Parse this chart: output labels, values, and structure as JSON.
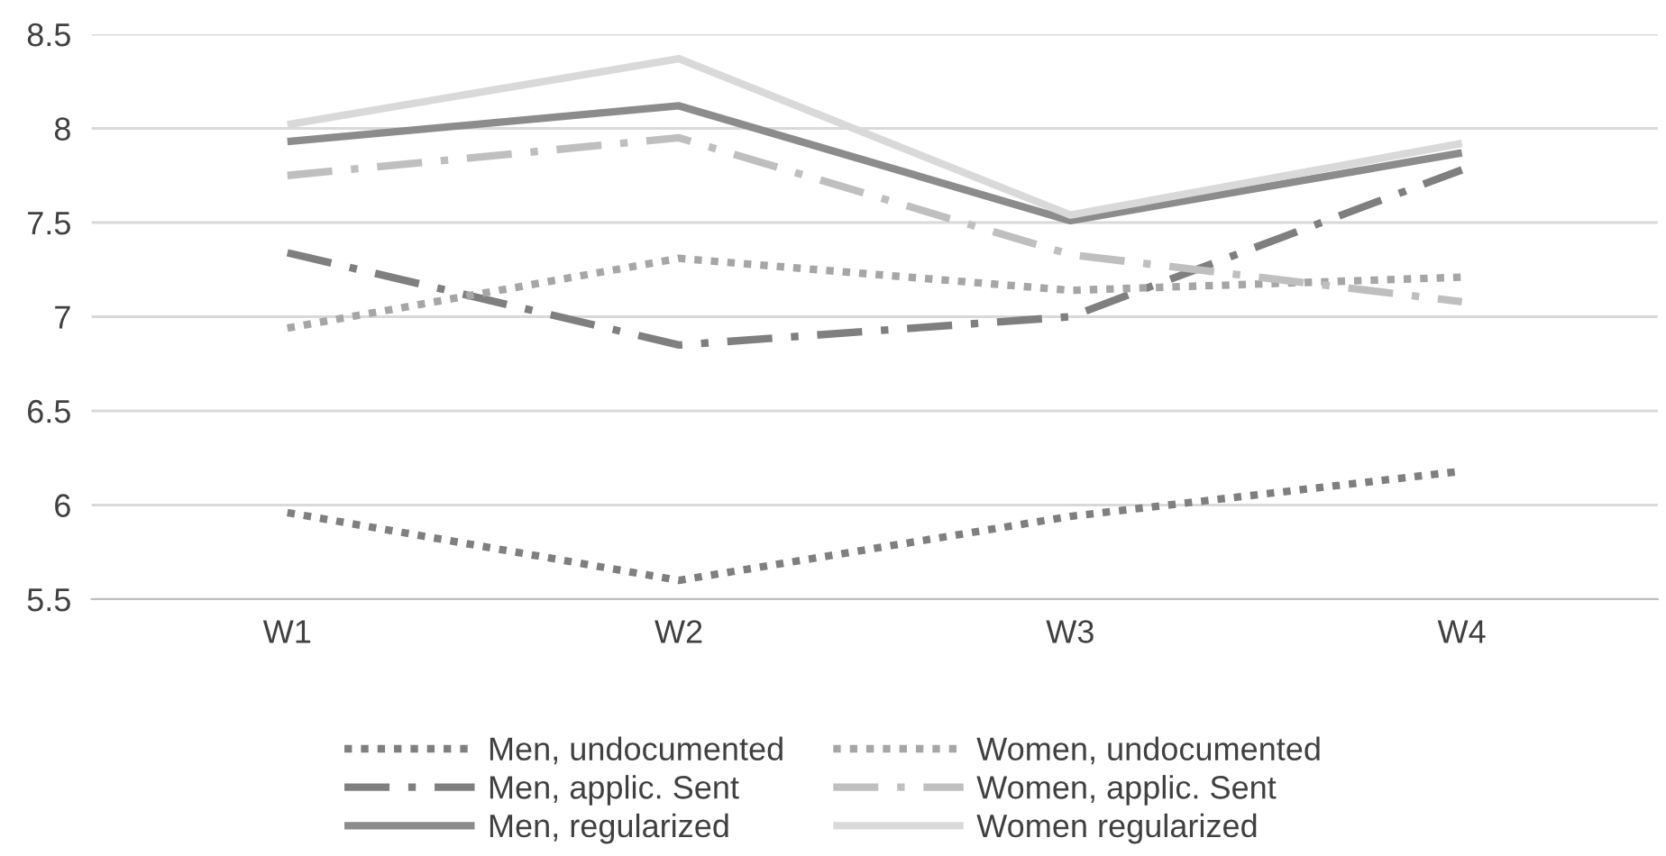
{
  "chart_data": {
    "type": "line",
    "categories": [
      "W1",
      "W2",
      "W3",
      "W4"
    ],
    "ylim": [
      5.5,
      8.5
    ],
    "yticks": [
      5.5,
      6,
      6.5,
      7,
      7.5,
      8,
      8.5
    ],
    "grid": "y",
    "legend": "bottom",
    "series": [
      {
        "name": "Men, undocumented",
        "color": "#7f7f7f",
        "line_style": "dotted",
        "values": [
          5.96,
          5.6,
          5.94,
          6.18
        ]
      },
      {
        "name": "Men, applic. Sent",
        "color": "#7f7f7f",
        "line_style": "dashed",
        "values": [
          7.34,
          6.85,
          7.0,
          7.78
        ]
      },
      {
        "name": "Men, regularized",
        "color": "#8c8c8c",
        "line_style": "solid",
        "values": [
          7.93,
          8.12,
          7.51,
          7.87
        ]
      },
      {
        "name": "Women, undocumented",
        "color": "#a6a6a6",
        "line_style": "dotted",
        "values": [
          6.94,
          7.31,
          7.14,
          7.21
        ]
      },
      {
        "name": "Women, applic. Sent",
        "color": "#bfbfbf",
        "line_style": "dashed",
        "values": [
          7.75,
          7.95,
          7.33,
          7.08
        ]
      },
      {
        "name": "Women regularized",
        "color": "#d9d9d9",
        "line_style": "solid",
        "values": [
          8.02,
          8.37,
          7.54,
          7.92
        ]
      }
    ]
  }
}
